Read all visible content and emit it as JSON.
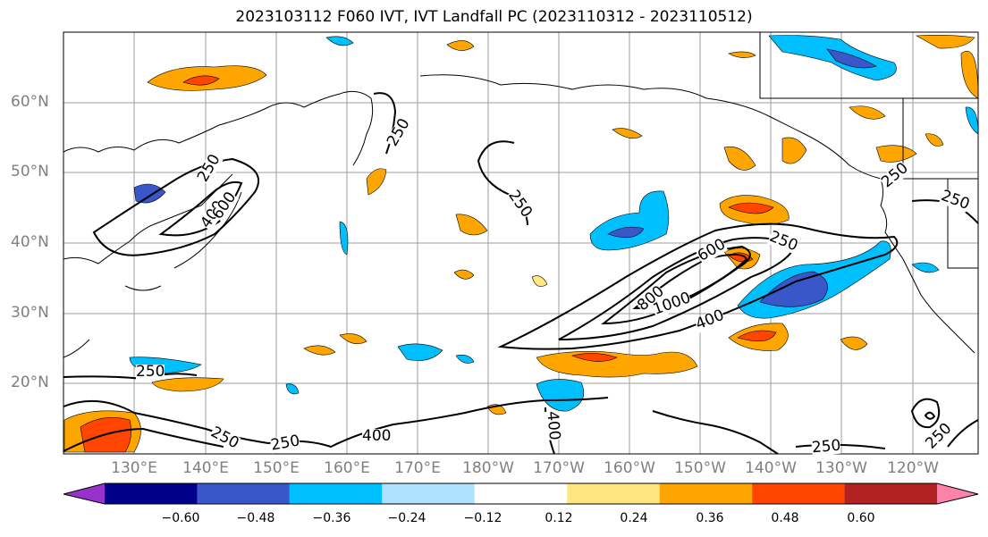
{
  "title": "2023103112 F060 IVT, IVT Landfall PC (2023110312 - 2023110512)",
  "lat_labels": [
    "60°N",
    "50°N",
    "40°N",
    "30°N",
    "20°N"
  ],
  "lon_labels": [
    "130°E",
    "140°E",
    "150°E",
    "160°E",
    "170°E",
    "180°W",
    "170°W",
    "160°W",
    "150°W",
    "140°W",
    "130°W",
    "120°W"
  ],
  "contour_labels": [
    "250",
    "250",
    "250",
    "400",
    "600",
    "250",
    "800",
    "600",
    "1000",
    "400",
    "250",
    "250",
    "250",
    "400",
    "400",
    "250",
    "250",
    "250",
    "250"
  ],
  "colorbar": {
    "ticks": [
      "−0.60",
      "−0.48",
      "−0.36",
      "−0.24",
      "−0.12",
      "0.12",
      "0.24",
      "0.36",
      "0.48",
      "0.60"
    ],
    "colors": [
      "#9932cc",
      "#00008b",
      "#3a57c9",
      "#00bfff",
      "#b0e2ff",
      "#ffffff",
      "#ffe680",
      "#ffa500",
      "#ff4500",
      "#b22222",
      "#ff82ab"
    ]
  }
}
